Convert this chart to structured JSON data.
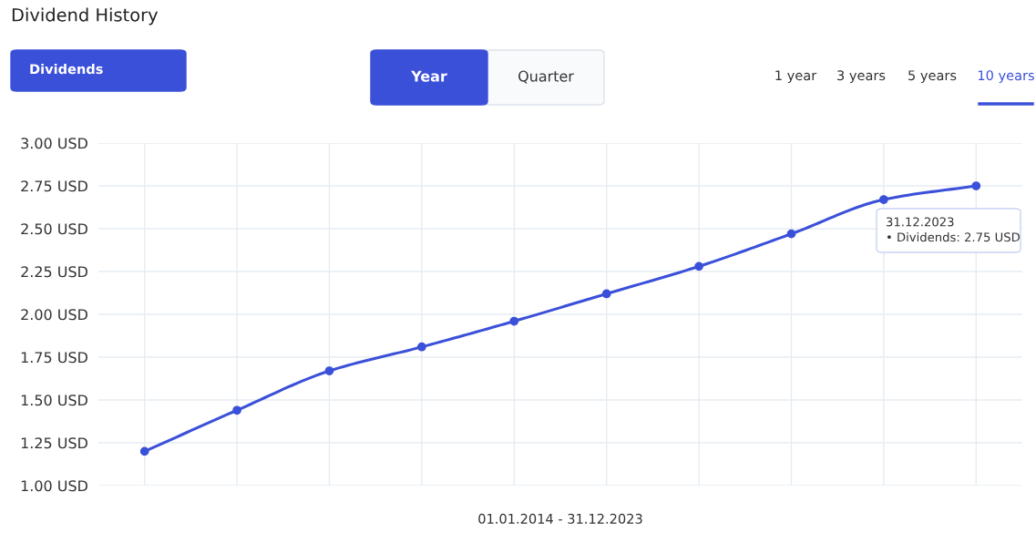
{
  "chart_data": {
    "type": "line",
    "title": "Dividend History",
    "xlabel": "01.01.2014 - 31.12.2023",
    "categories": [
      null,
      null,
      null,
      null,
      null,
      null,
      null,
      null,
      null,
      null
    ],
    "series": [
      {
        "color": "#3b50d9",
        "values": [
          1.2,
          1.44,
          1.67,
          1.81,
          1.96,
          2.12,
          2.28,
          2.47,
          2.67,
          2.75
        ]
      }
    ],
    "ylim": [
      1.0,
      3.0
    ],
    "yticks": [
      {
        "value": 1.0,
        "label": "1.00 USD"
      },
      {
        "value": 1.25,
        "label": "1.25 USD"
      },
      {
        "value": 1.5,
        "label": "1.50 USD"
      },
      {
        "value": 1.75,
        "label": "1.75 USD"
      },
      {
        "value": 2.0,
        "label": "2.00 USD"
      },
      {
        "value": 2.25,
        "label": "2.25 USD"
      },
      {
        "value": 2.5,
        "label": "2.50 USD"
      },
      {
        "value": 2.75,
        "label": "2.75 USD"
      },
      {
        "value": 3.0,
        "label": "3.00 USD"
      }
    ],
    "grid": true,
    "marker": "circle",
    "line_style": "solid",
    "legend": false,
    "annotations": [
      "Dividends",
      "Year",
      "Quarter",
      "1 year",
      "3 years",
      "5 years",
      "10 years",
      "31.12.2023\n• Dividends: 2.75 USD"
    ]
  }
}
